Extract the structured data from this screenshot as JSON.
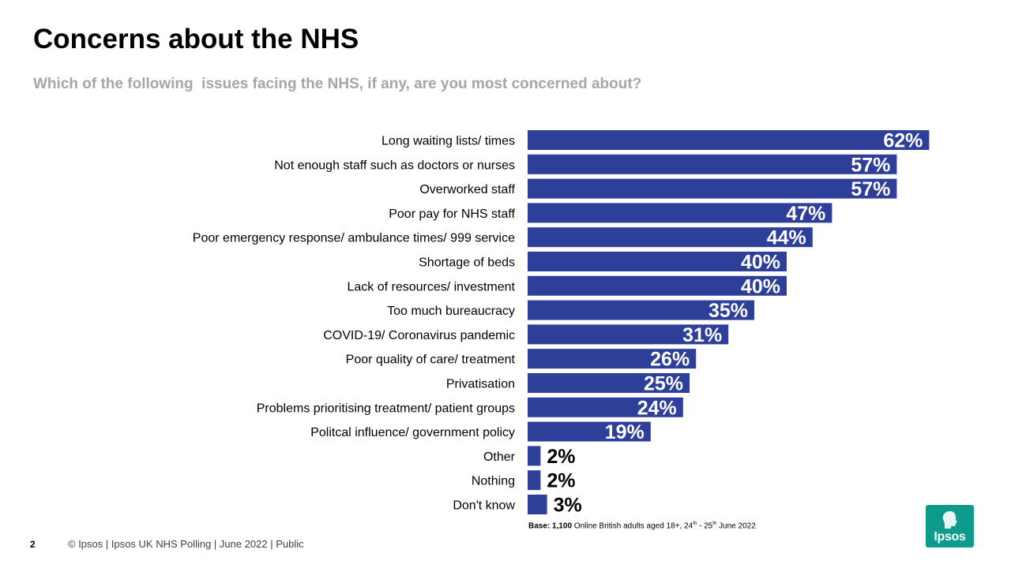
{
  "title": "Concerns about the NHS",
  "subtitle": "Which of the following  issues facing the NHS, if any, are you most concerned about?",
  "chart_data": {
    "type": "bar",
    "orientation": "horizontal",
    "categories": [
      "Long waiting lists/ times",
      "Not enough staff such as doctors or nurses",
      "Overworked staff",
      "Poor pay for NHS staff",
      "Poor emergency response/ ambulance times/ 999 service",
      "Shortage of beds",
      "Lack of resources/ investment",
      "Too much bureaucracy",
      "COVID-19/ Coronavirus pandemic",
      "Poor quality of care/ treatment",
      "Privatisation",
      "Problems prioritising treatment/ patient groups",
      "Politcal influence/ government policy",
      "Other",
      "Nothing",
      "Don't know"
    ],
    "values": [
      62,
      57,
      57,
      47,
      44,
      40,
      40,
      35,
      31,
      26,
      25,
      24,
      19,
      2,
      2,
      3
    ],
    "value_suffix": "%",
    "bar_color": "#2e3f9a",
    "xlim": [
      0,
      100
    ],
    "grid": false,
    "legend": "none"
  },
  "base_note": {
    "label": "Base:",
    "count": "1,100",
    "text_a": " Online British adults aged 18+, 24",
    "sup_a": "th",
    "text_b": " - 25",
    "sup_b": "th",
    "text_c": " June 2022"
  },
  "footer": {
    "page_number": "2",
    "text": "© Ipsos | Ipsos UK NHS Polling | June 2022 | Public"
  },
  "logo": {
    "text": "Ipsos",
    "color": "#0f9a8e"
  }
}
